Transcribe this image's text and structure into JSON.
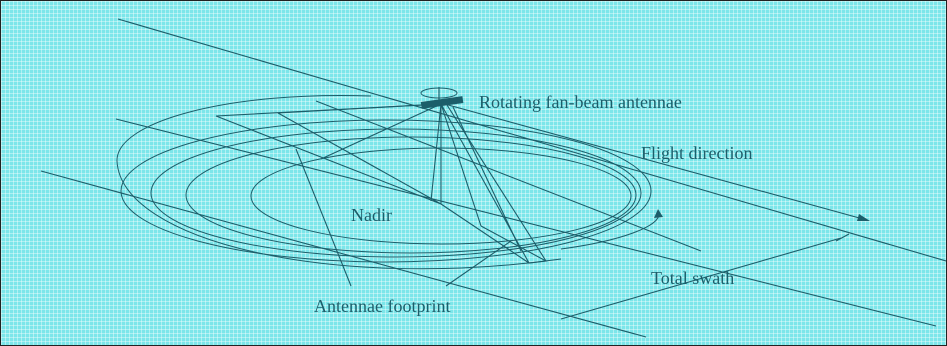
{
  "diagram": {
    "labels": {
      "antenna": "Rotating fan-beam antennae",
      "flight": "Flight direction",
      "nadir": "Nadir",
      "swath": "Total swath",
      "footprint": "Antennae footprint"
    }
  }
}
